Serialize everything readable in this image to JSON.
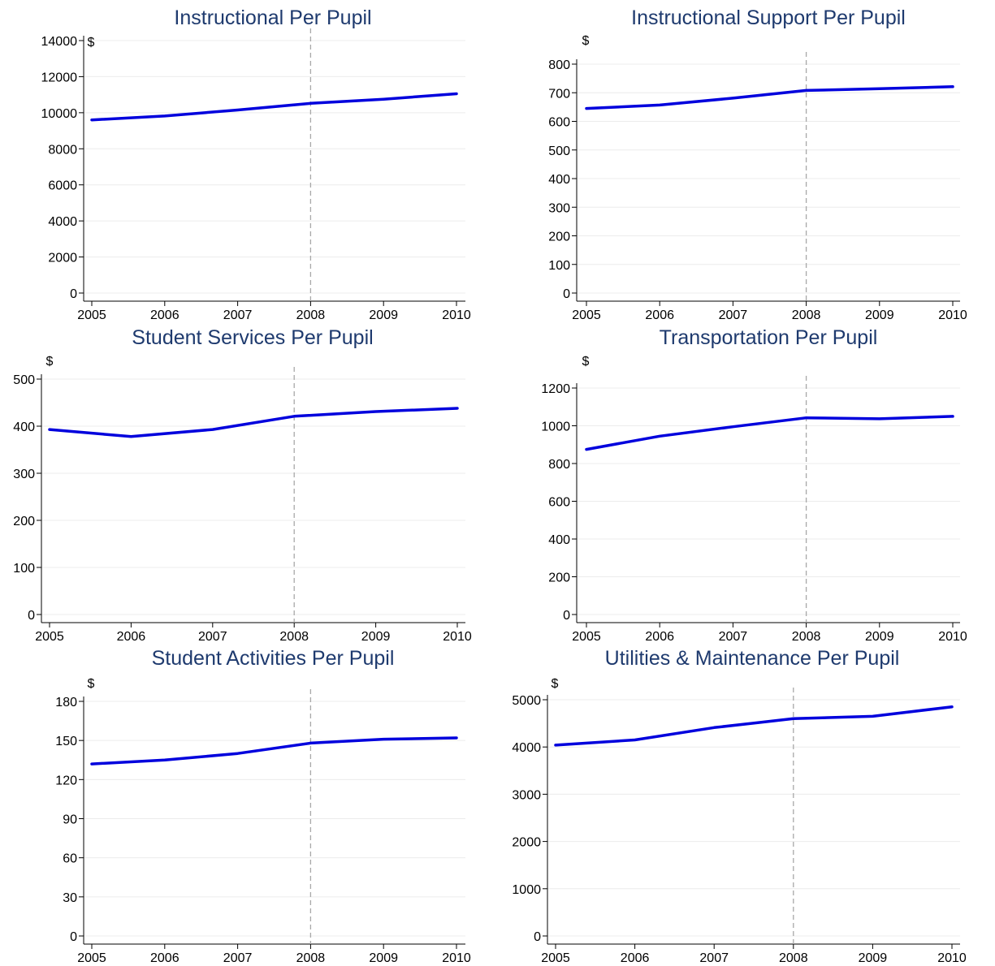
{
  "chart_data": [
    {
      "type": "line",
      "title": "Instructional Per Pupil",
      "ylabel": "$",
      "xlabel": "",
      "x": [
        2005,
        2006,
        2007,
        2008,
        2009,
        2010
      ],
      "y": [
        9600,
        9820,
        10150,
        10520,
        10750,
        11050
      ],
      "yticks": [
        0,
        2000,
        4000,
        6000,
        8000,
        10000,
        12000,
        14000
      ],
      "ylim": [
        0,
        14000
      ],
      "vline": 2008,
      "line_color": "#0000dd"
    },
    {
      "type": "line",
      "title": "Instructional Support Per Pupil",
      "ylabel": "$",
      "xlabel": "",
      "x": [
        2005,
        2006,
        2007,
        2008,
        2009,
        2010
      ],
      "y": [
        645,
        657,
        681,
        708,
        714,
        721
      ],
      "yticks": [
        0,
        100,
        200,
        300,
        400,
        500,
        600,
        700,
        800
      ],
      "ylim": [
        0,
        800
      ],
      "vline": 2008,
      "line_color": "#0000dd"
    },
    {
      "type": "line",
      "title": "Student Services Per Pupil",
      "ylabel": "$",
      "xlabel": "",
      "x": [
        2005,
        2006,
        2007,
        2008,
        2009,
        2010
      ],
      "y": [
        393,
        378,
        393,
        421,
        431,
        438
      ],
      "yticks": [
        0,
        100,
        200,
        300,
        400,
        500
      ],
      "ylim": [
        0,
        500
      ],
      "vline": 2008,
      "line_color": "#0000dd"
    },
    {
      "type": "line",
      "title": "Transportation Per Pupil",
      "ylabel": "$",
      "xlabel": "",
      "x": [
        2005,
        2006,
        2007,
        2008,
        2009,
        2010
      ],
      "y": [
        875,
        945,
        995,
        1042,
        1037,
        1050
      ],
      "yticks": [
        0,
        200,
        400,
        600,
        800,
        1000,
        1200
      ],
      "ylim": [
        0,
        1200
      ],
      "vline": 2008,
      "line_color": "#0000dd"
    },
    {
      "type": "line",
      "title": "Student Activities Per Pupil",
      "ylabel": "$",
      "xlabel": "",
      "x": [
        2005,
        2006,
        2007,
        2008,
        2009,
        2010
      ],
      "y": [
        132,
        135,
        140,
        148,
        151,
        152
      ],
      "yticks": [
        0,
        30,
        60,
        90,
        120,
        150,
        180
      ],
      "ylim": [
        0,
        180
      ],
      "vline": 2008,
      "line_color": "#0000dd"
    },
    {
      "type": "line",
      "title": "Utilities & Maintenance Per Pupil",
      "ylabel": "$",
      "xlabel": "",
      "x": [
        2005,
        2006,
        2007,
        2008,
        2009,
        2010
      ],
      "y": [
        4040,
        4150,
        4410,
        4600,
        4650,
        4850
      ],
      "yticks": [
        0,
        1000,
        2000,
        3000,
        4000,
        5000
      ],
      "ylim": [
        0,
        5000
      ],
      "vline": 2008,
      "line_color": "#0000dd"
    }
  ]
}
